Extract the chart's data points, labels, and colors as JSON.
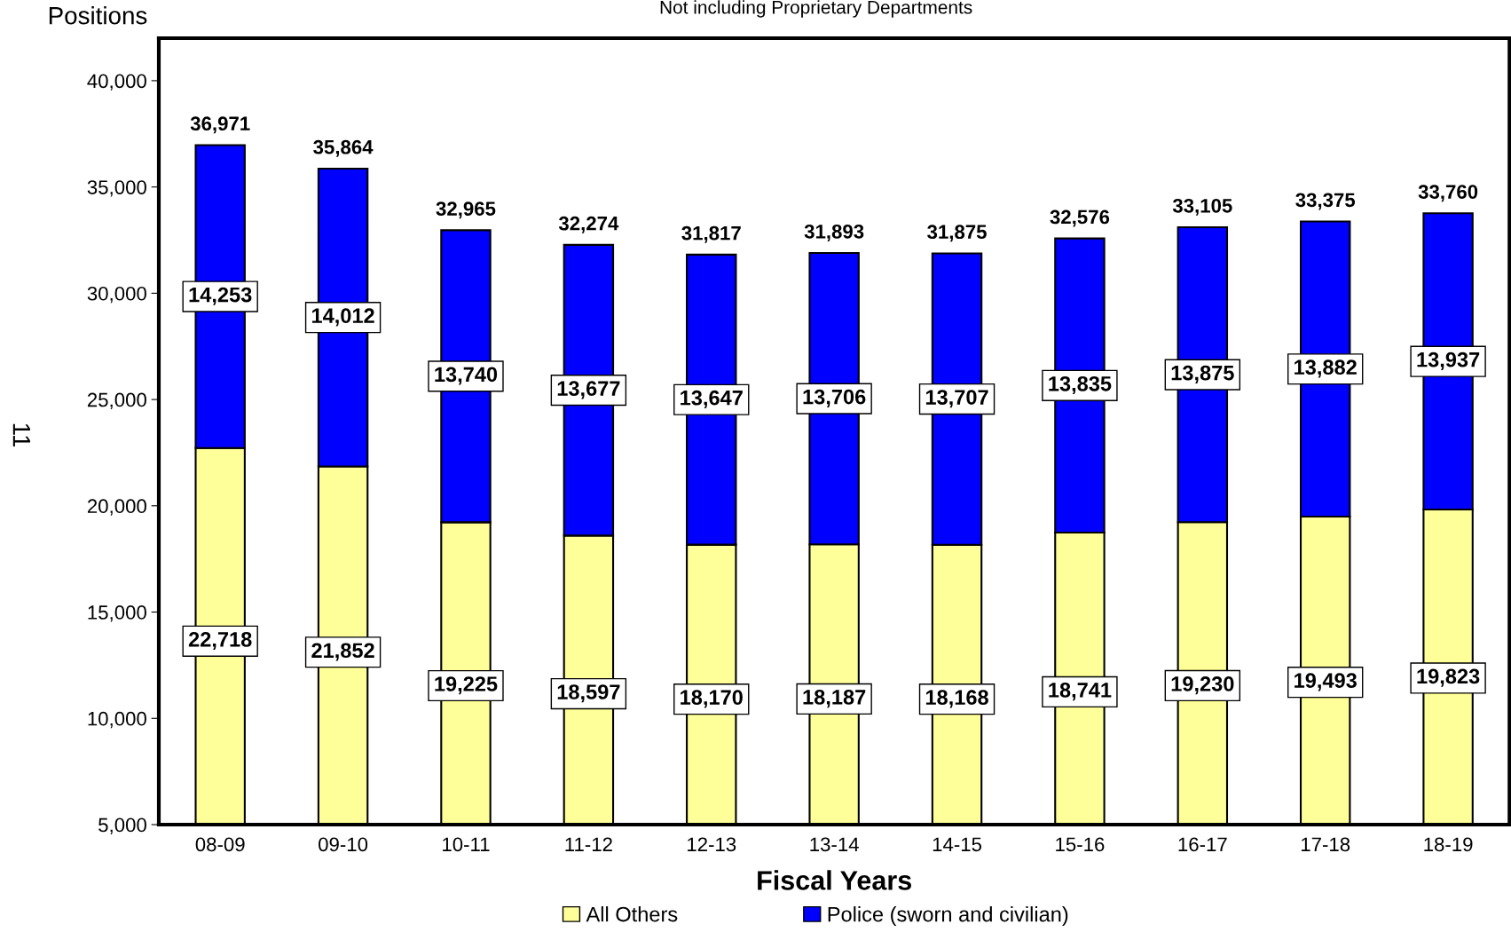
{
  "chart_data": {
    "type": "bar",
    "stacked": true,
    "subtitle": "Not including Proprietary Departments",
    "ylabel": "Positions",
    "xlabel": "Fiscal Years",
    "categories": [
      "08-09",
      "09-10",
      "10-11",
      "11-12",
      "12-13",
      "13-14",
      "14-15",
      "15-16",
      "16-17",
      "17-18",
      "18-19"
    ],
    "series": [
      {
        "name": "All Others",
        "color": "#ffff99",
        "values": [
          22718,
          21852,
          19225,
          18597,
          18170,
          18187,
          18168,
          18741,
          19230,
          19493,
          19823
        ],
        "value_labels": [
          "22,718",
          "21,852",
          "19,225",
          "18,597",
          "18,170",
          "18,187",
          "18,168",
          "18,741",
          "19,230",
          "19,493",
          "19,823"
        ]
      },
      {
        "name": "Police (sworn and civilian)",
        "color": "#0000ff",
        "values": [
          14253,
          14012,
          13740,
          13677,
          13647,
          13706,
          13707,
          13835,
          13875,
          13882,
          13937
        ],
        "value_labels": [
          "14,253",
          "14,012",
          "13,740",
          "13,677",
          "13,647",
          "13,706",
          "13,707",
          "13,835",
          "13,875",
          "13,882",
          "13,937"
        ]
      }
    ],
    "totals": [
      "36,971",
      "35,864",
      "32,965",
      "32,274",
      "31,817",
      "31,893",
      "31,875",
      "32,576",
      "33,105",
      "33,375",
      "33,760"
    ],
    "ylim": [
      5000,
      42000
    ],
    "yticks": [
      {
        "value": 5000,
        "label": "5,000"
      },
      {
        "value": 10000,
        "label": "10,000"
      },
      {
        "value": 15000,
        "label": "15,000"
      },
      {
        "value": 20000,
        "label": "20,000"
      },
      {
        "value": 25000,
        "label": "25,000"
      },
      {
        "value": 30000,
        "label": "30,000"
      },
      {
        "value": 35000,
        "label": "35,000"
      },
      {
        "value": 40000,
        "label": "40,000"
      }
    ],
    "grid": false,
    "legend": "bottom",
    "annotations": [
      "11"
    ]
  }
}
